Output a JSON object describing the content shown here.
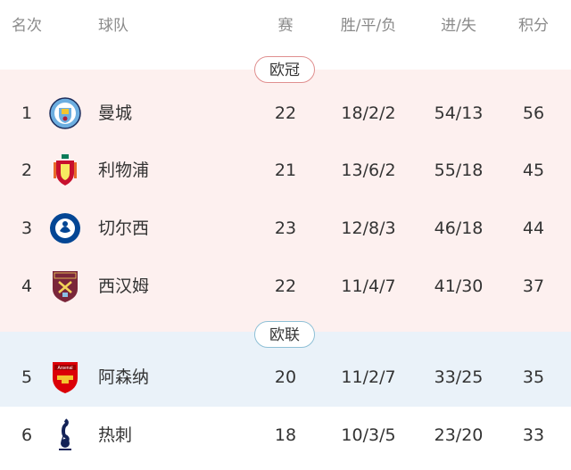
{
  "header": {
    "rank": "名次",
    "team": "球队",
    "played": "赛",
    "wdl": "胜/平/负",
    "goals": "进/失",
    "points": "积分"
  },
  "zones": [
    {
      "label": "欧冠",
      "band_color": "#fdf0ef",
      "border_color": "#e08f8f"
    },
    {
      "label": "欧联",
      "band_color": "#eaf2f9",
      "border_color": "#8fc0d6"
    }
  ],
  "rows": [
    {
      "rank": "1",
      "team": "曼城",
      "logo": "manchester-city-crest",
      "played": "22",
      "wdl": "18/2/2",
      "goals": "54/13",
      "points": "56"
    },
    {
      "rank": "2",
      "team": "利物浦",
      "logo": "liverpool-crest",
      "played": "21",
      "wdl": "13/6/2",
      "goals": "55/18",
      "points": "45"
    },
    {
      "rank": "3",
      "team": "切尔西",
      "logo": "chelsea-crest",
      "played": "23",
      "wdl": "12/8/3",
      "goals": "46/18",
      "points": "44"
    },
    {
      "rank": "4",
      "team": "西汉姆",
      "logo": "west-ham-crest",
      "played": "22",
      "wdl": "11/4/7",
      "goals": "41/30",
      "points": "37"
    },
    {
      "rank": "5",
      "team": "阿森纳",
      "logo": "arsenal-crest",
      "played": "20",
      "wdl": "11/2/7",
      "goals": "33/25",
      "points": "35"
    },
    {
      "rank": "6",
      "team": "热刺",
      "logo": "tottenham-crest",
      "played": "18",
      "wdl": "10/3/5",
      "goals": "23/20",
      "points": "33"
    }
  ]
}
